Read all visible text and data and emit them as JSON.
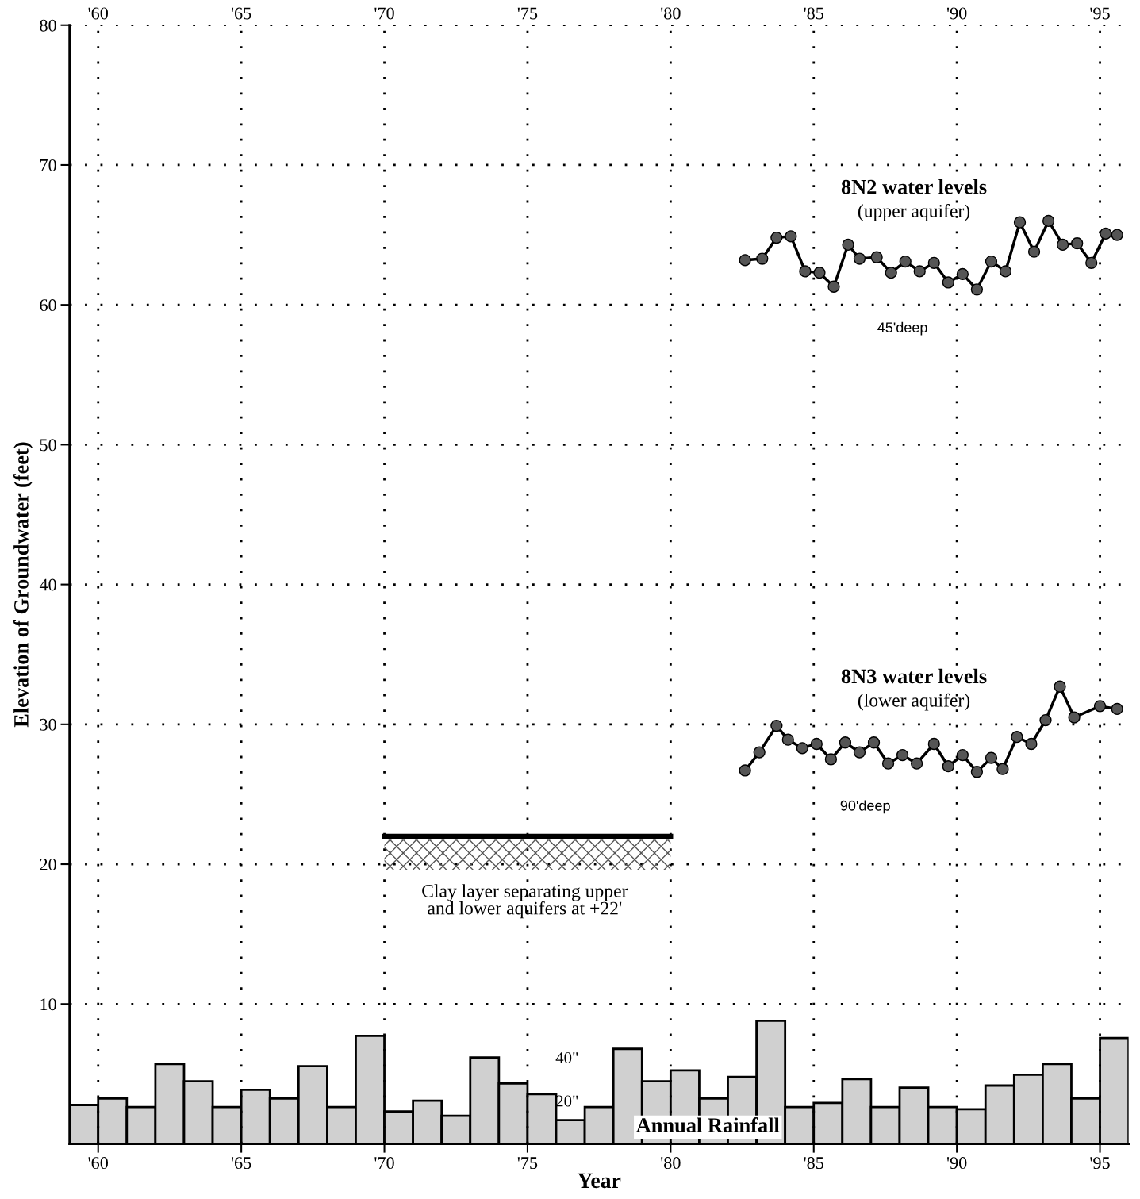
{
  "chart_data": {
    "type": "line",
    "xlabel": "Year",
    "ylabel": "Elevation of Groundwater (feet)",
    "annotations": [
      "(upper aquifer)",
      "45'deep",
      "(lower aquifer)",
      "90'deep"
    ],
    "xlim": [
      1959,
      1996
    ],
    "xticks": [
      {
        "value": 1960,
        "label": "'60"
      },
      {
        "value": 1965,
        "label": "'65"
      },
      {
        "value": 1970,
        "label": "'70"
      },
      {
        "value": 1975,
        "label": "'75"
      },
      {
        "value": 1980,
        "label": "'80"
      },
      {
        "value": 1985,
        "label": "'85"
      },
      {
        "value": 1990,
        "label": "'90"
      },
      {
        "value": 1995,
        "label": "'95"
      }
    ],
    "x2lim": [
      1959,
      1996
    ],
    "x2ticks": [
      {
        "value": 1960,
        "label": "'60"
      },
      {
        "value": 1965,
        "label": "'65"
      },
      {
        "value": 1970,
        "label": "'70"
      },
      {
        "value": 1975,
        "label": "'75"
      },
      {
        "value": 1980,
        "label": "'80"
      },
      {
        "value": 1985,
        "label": "'85"
      },
      {
        "value": 1990,
        "label": "'90"
      },
      {
        "value": 1995,
        "label": "'95"
      }
    ],
    "ylim": [
      0,
      80
    ],
    "yticks": [
      10,
      20,
      30,
      40,
      50,
      60,
      70,
      80
    ],
    "y2lim": [
      0,
      518
    ],
    "y2ticks": [
      {
        "value": 20,
        "label": "20\""
      },
      {
        "value": 40,
        "label": "40\""
      }
    ],
    "grid": true,
    "legend": false,
    "series": [
      {
        "name": "Annual Rainfall",
        "type": "bar",
        "axis": "y2",
        "color": "#d0d0d0",
        "x": [
          1959.5,
          1960.5,
          1961.5,
          1962.5,
          1963.5,
          1964.5,
          1965.5,
          1966.5,
          1967.5,
          1968.5,
          1969.5,
          1970.5,
          1971.5,
          1972.5,
          1973.5,
          1974.5,
          1975.5,
          1976.5,
          1977.5,
          1978.5,
          1979.5,
          1980.5,
          1981.5,
          1982.5,
          1983.5,
          1984.5,
          1985.5,
          1986.5,
          1987.5,
          1988.5,
          1989.5,
          1990.5,
          1991.5,
          1992.5,
          1993.5,
          1994.5,
          1995.5
        ],
        "values": [
          18,
          21,
          17,
          37,
          29,
          17,
          25,
          21,
          36,
          17,
          50,
          15,
          20,
          13,
          40,
          28,
          23,
          11,
          17,
          44,
          29,
          34,
          21,
          31,
          57,
          17,
          19,
          30,
          17,
          26,
          17,
          16,
          27,
          32,
          37,
          21,
          49
        ]
      },
      {
        "name": "8N2 water levels",
        "color": "#000000",
        "marker": "circle",
        "line_style": "solid",
        "x": [
          1982.6,
          1983.2,
          1983.7,
          1984.2,
          1984.7,
          1985.2,
          1985.7,
          1986.2,
          1986.6,
          1987.2,
          1987.7,
          1988.2,
          1988.7,
          1989.2,
          1989.7,
          1990.2,
          1990.7,
          1991.2,
          1991.7,
          1992.2,
          1992.7,
          1993.2,
          1993.7,
          1994.2,
          1994.7,
          1995.2,
          1995.6
        ],
        "values": [
          63.2,
          63.3,
          64.8,
          64.9,
          62.4,
          62.3,
          61.3,
          64.3,
          63.3,
          63.4,
          62.3,
          63.1,
          62.4,
          63.0,
          61.6,
          62.2,
          61.1,
          63.1,
          62.4,
          65.9,
          63.8,
          66.0,
          64.3,
          64.4,
          63.0,
          65.1,
          65.0
        ]
      },
      {
        "name": "8N3 water levels",
        "color": "#000000",
        "marker": "circle",
        "line_style": "solid",
        "x": [
          1982.6,
          1983.1,
          1983.7,
          1984.1,
          1984.6,
          1985.1,
          1985.6,
          1986.1,
          1986.6,
          1987.1,
          1987.6,
          1988.1,
          1988.6,
          1989.2,
          1989.7,
          1990.2,
          1990.7,
          1991.2,
          1991.6,
          1992.1,
          1992.6,
          1993.1,
          1993.6,
          1994.1,
          1995.0,
          1995.6
        ],
        "values": [
          26.7,
          28.0,
          29.9,
          28.9,
          28.3,
          28.6,
          27.5,
          28.7,
          28.0,
          28.7,
          27.2,
          27.8,
          27.2,
          28.6,
          27.0,
          27.8,
          26.6,
          27.6,
          26.8,
          29.1,
          28.6,
          30.3,
          32.7,
          30.5,
          31.3,
          31.1
        ]
      },
      {
        "name": "Clay layer separating upper\nand lower aquifers at +22'",
        "color": "#000000",
        "marker": "none",
        "line_style": "solid",
        "x": [
          1970,
          1980
        ],
        "values": [
          22,
          22
        ]
      }
    ]
  }
}
